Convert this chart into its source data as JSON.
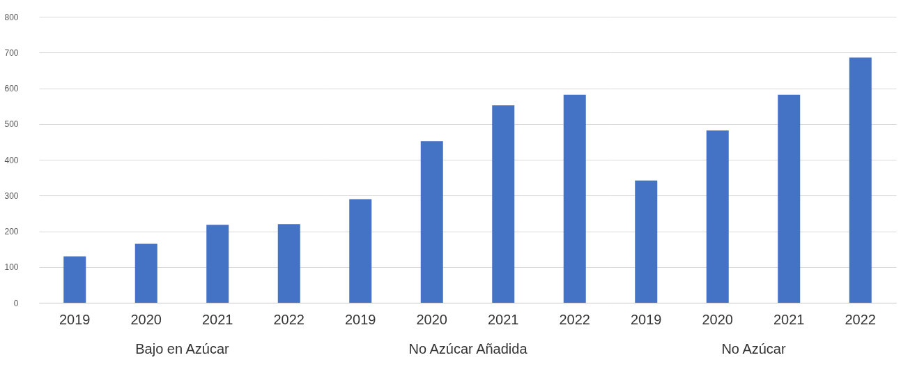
{
  "chart_data": [
    {
      "type": "bar",
      "xlabel": "Bajo en Azúcar",
      "categories": [
        "2019",
        "2020",
        "2021",
        "2022"
      ],
      "values": [
        130,
        165,
        218,
        220
      ],
      "color": "#4472c4",
      "ylim": [
        0,
        800
      ],
      "yticks": [
        0,
        100,
        200,
        300,
        400,
        500,
        600,
        700,
        800
      ],
      "grid": "y"
    },
    {
      "type": "bar",
      "xlabel": "No Azúcar Añadida",
      "categories": [
        "2019",
        "2020",
        "2021",
        "2022"
      ],
      "values": [
        290,
        452,
        552,
        582
      ],
      "color": "#4472c4",
      "ylim": [
        0,
        800
      ],
      "yticks": [
        0,
        100,
        200,
        300,
        400,
        500,
        600,
        700,
        800
      ],
      "grid": "y",
      "tick_labels": "x"
    },
    {
      "type": "bar",
      "xlabel": "No Azúcar",
      "categories": [
        "2019",
        "2020",
        "2021",
        "2022"
      ],
      "values": [
        342,
        482,
        582,
        686
      ],
      "color": "#4472c4",
      "ylim": [
        0,
        800
      ],
      "yticks": [
        0,
        100,
        200,
        300,
        400,
        500,
        600,
        700,
        800
      ],
      "grid": "y",
      "tick_labels": "x"
    }
  ]
}
